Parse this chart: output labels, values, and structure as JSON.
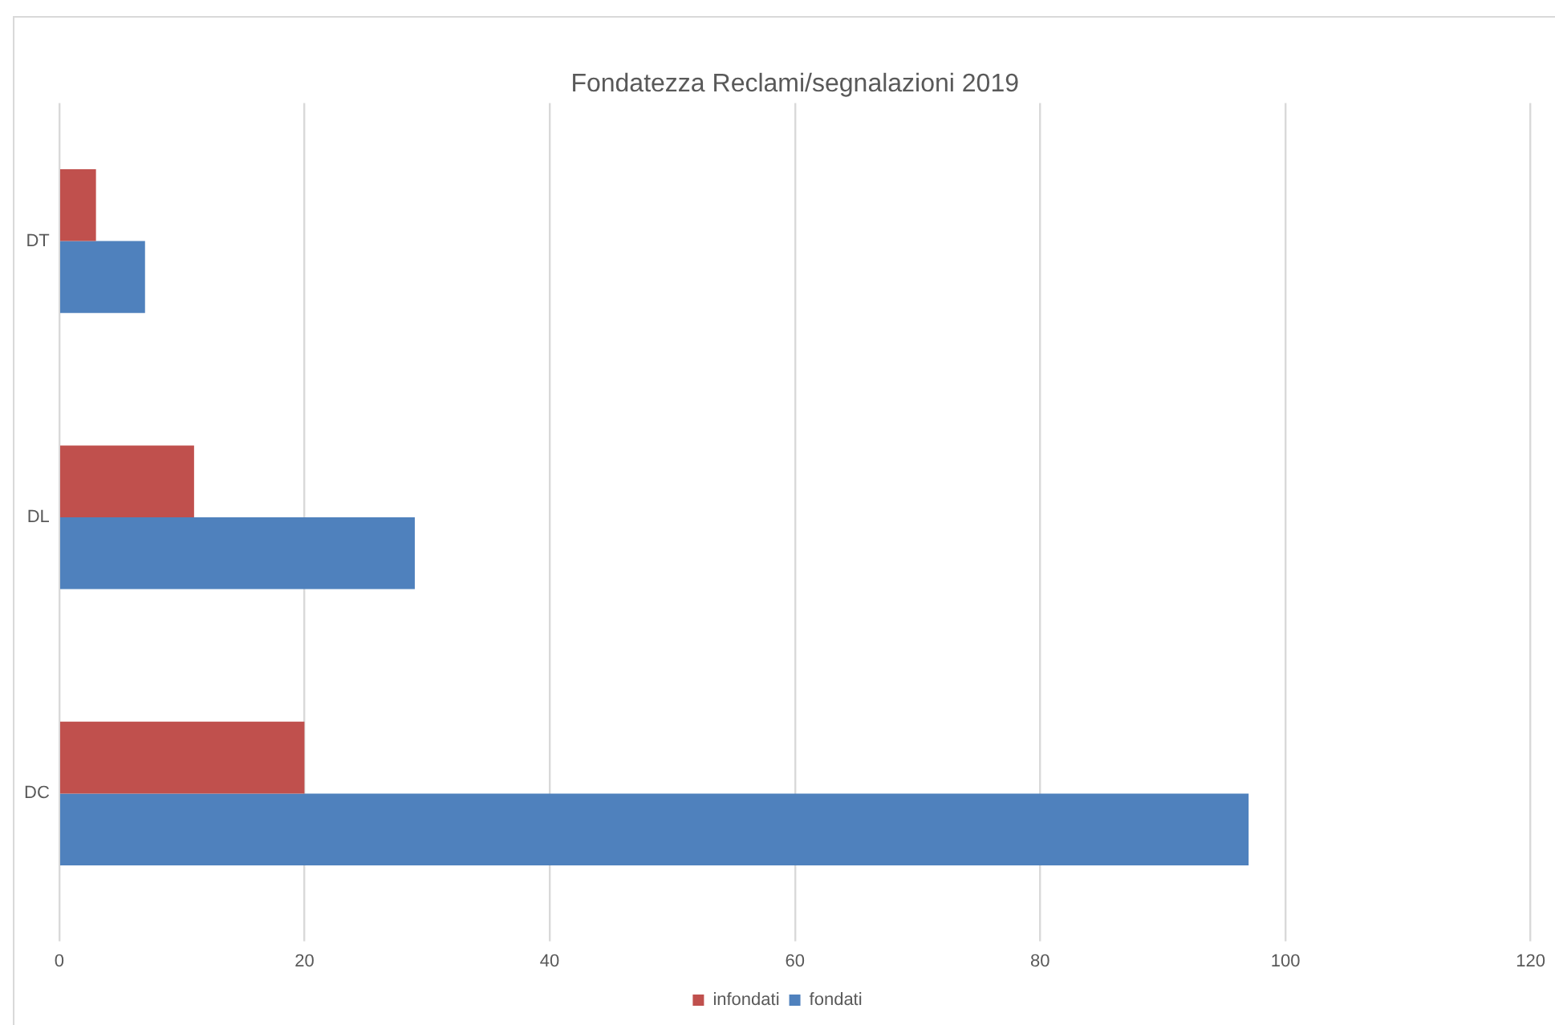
{
  "chart_data": {
    "type": "bar",
    "orientation": "horizontal",
    "title": "Fondatezza Reclami/segnalazioni 2019",
    "categories": [
      "DT",
      "DL",
      "DC"
    ],
    "series": [
      {
        "name": "infondati",
        "color": "#c0504d",
        "values": [
          3,
          11,
          20
        ]
      },
      {
        "name": "fondati",
        "color": "#4f81bd",
        "values": [
          7,
          29,
          97
        ]
      }
    ],
    "xlim": [
      0,
      120
    ],
    "xticks": [
      0,
      20,
      40,
      60,
      80,
      100,
      120
    ],
    "grid": "x",
    "legend": "bottom"
  }
}
